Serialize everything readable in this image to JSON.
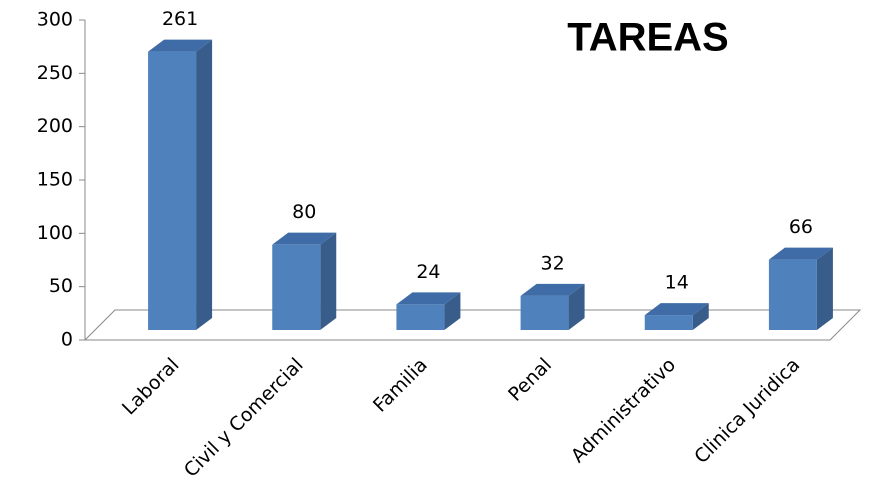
{
  "chart_data": {
    "type": "bar3d",
    "title": "TAREAS",
    "categories": [
      "Laboral",
      "Civil y Comercial",
      "Familia",
      "Penal",
      "Administrativo",
      "Clinica Juridica"
    ],
    "values": [
      261,
      80,
      24,
      32,
      14,
      66
    ],
    "color": "#4f81bd",
    "ylim": [
      0,
      300
    ],
    "yticks": [
      0,
      50,
      100,
      150,
      200,
      250,
      300
    ],
    "grid": false
  }
}
